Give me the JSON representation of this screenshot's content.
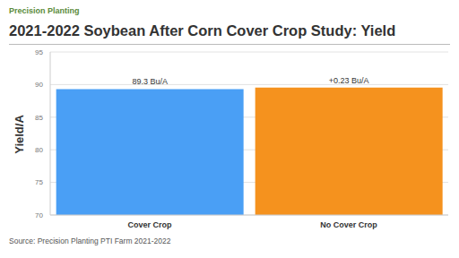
{
  "chart_data": {
    "type": "bar",
    "logo": "Precision Planting",
    "title": "2021-2022 Soybean After Corn Cover Crop Study: Yield",
    "y_label": "Yield/A",
    "categories": [
      "Cover Crop",
      "No Cover Crop"
    ],
    "values": [
      89.3,
      89.53
    ],
    "annotations": [
      "89.3 Bu/A",
      "+0.23 Bu/A"
    ],
    "colors": [
      "#4a9ff5",
      "#f5921e"
    ],
    "ylim": [
      70,
      95
    ],
    "yticks": [
      70,
      75,
      80,
      85,
      90,
      95
    ],
    "grid": true,
    "source": "Source: Precision Planting PTI Farm 2021-2022"
  }
}
